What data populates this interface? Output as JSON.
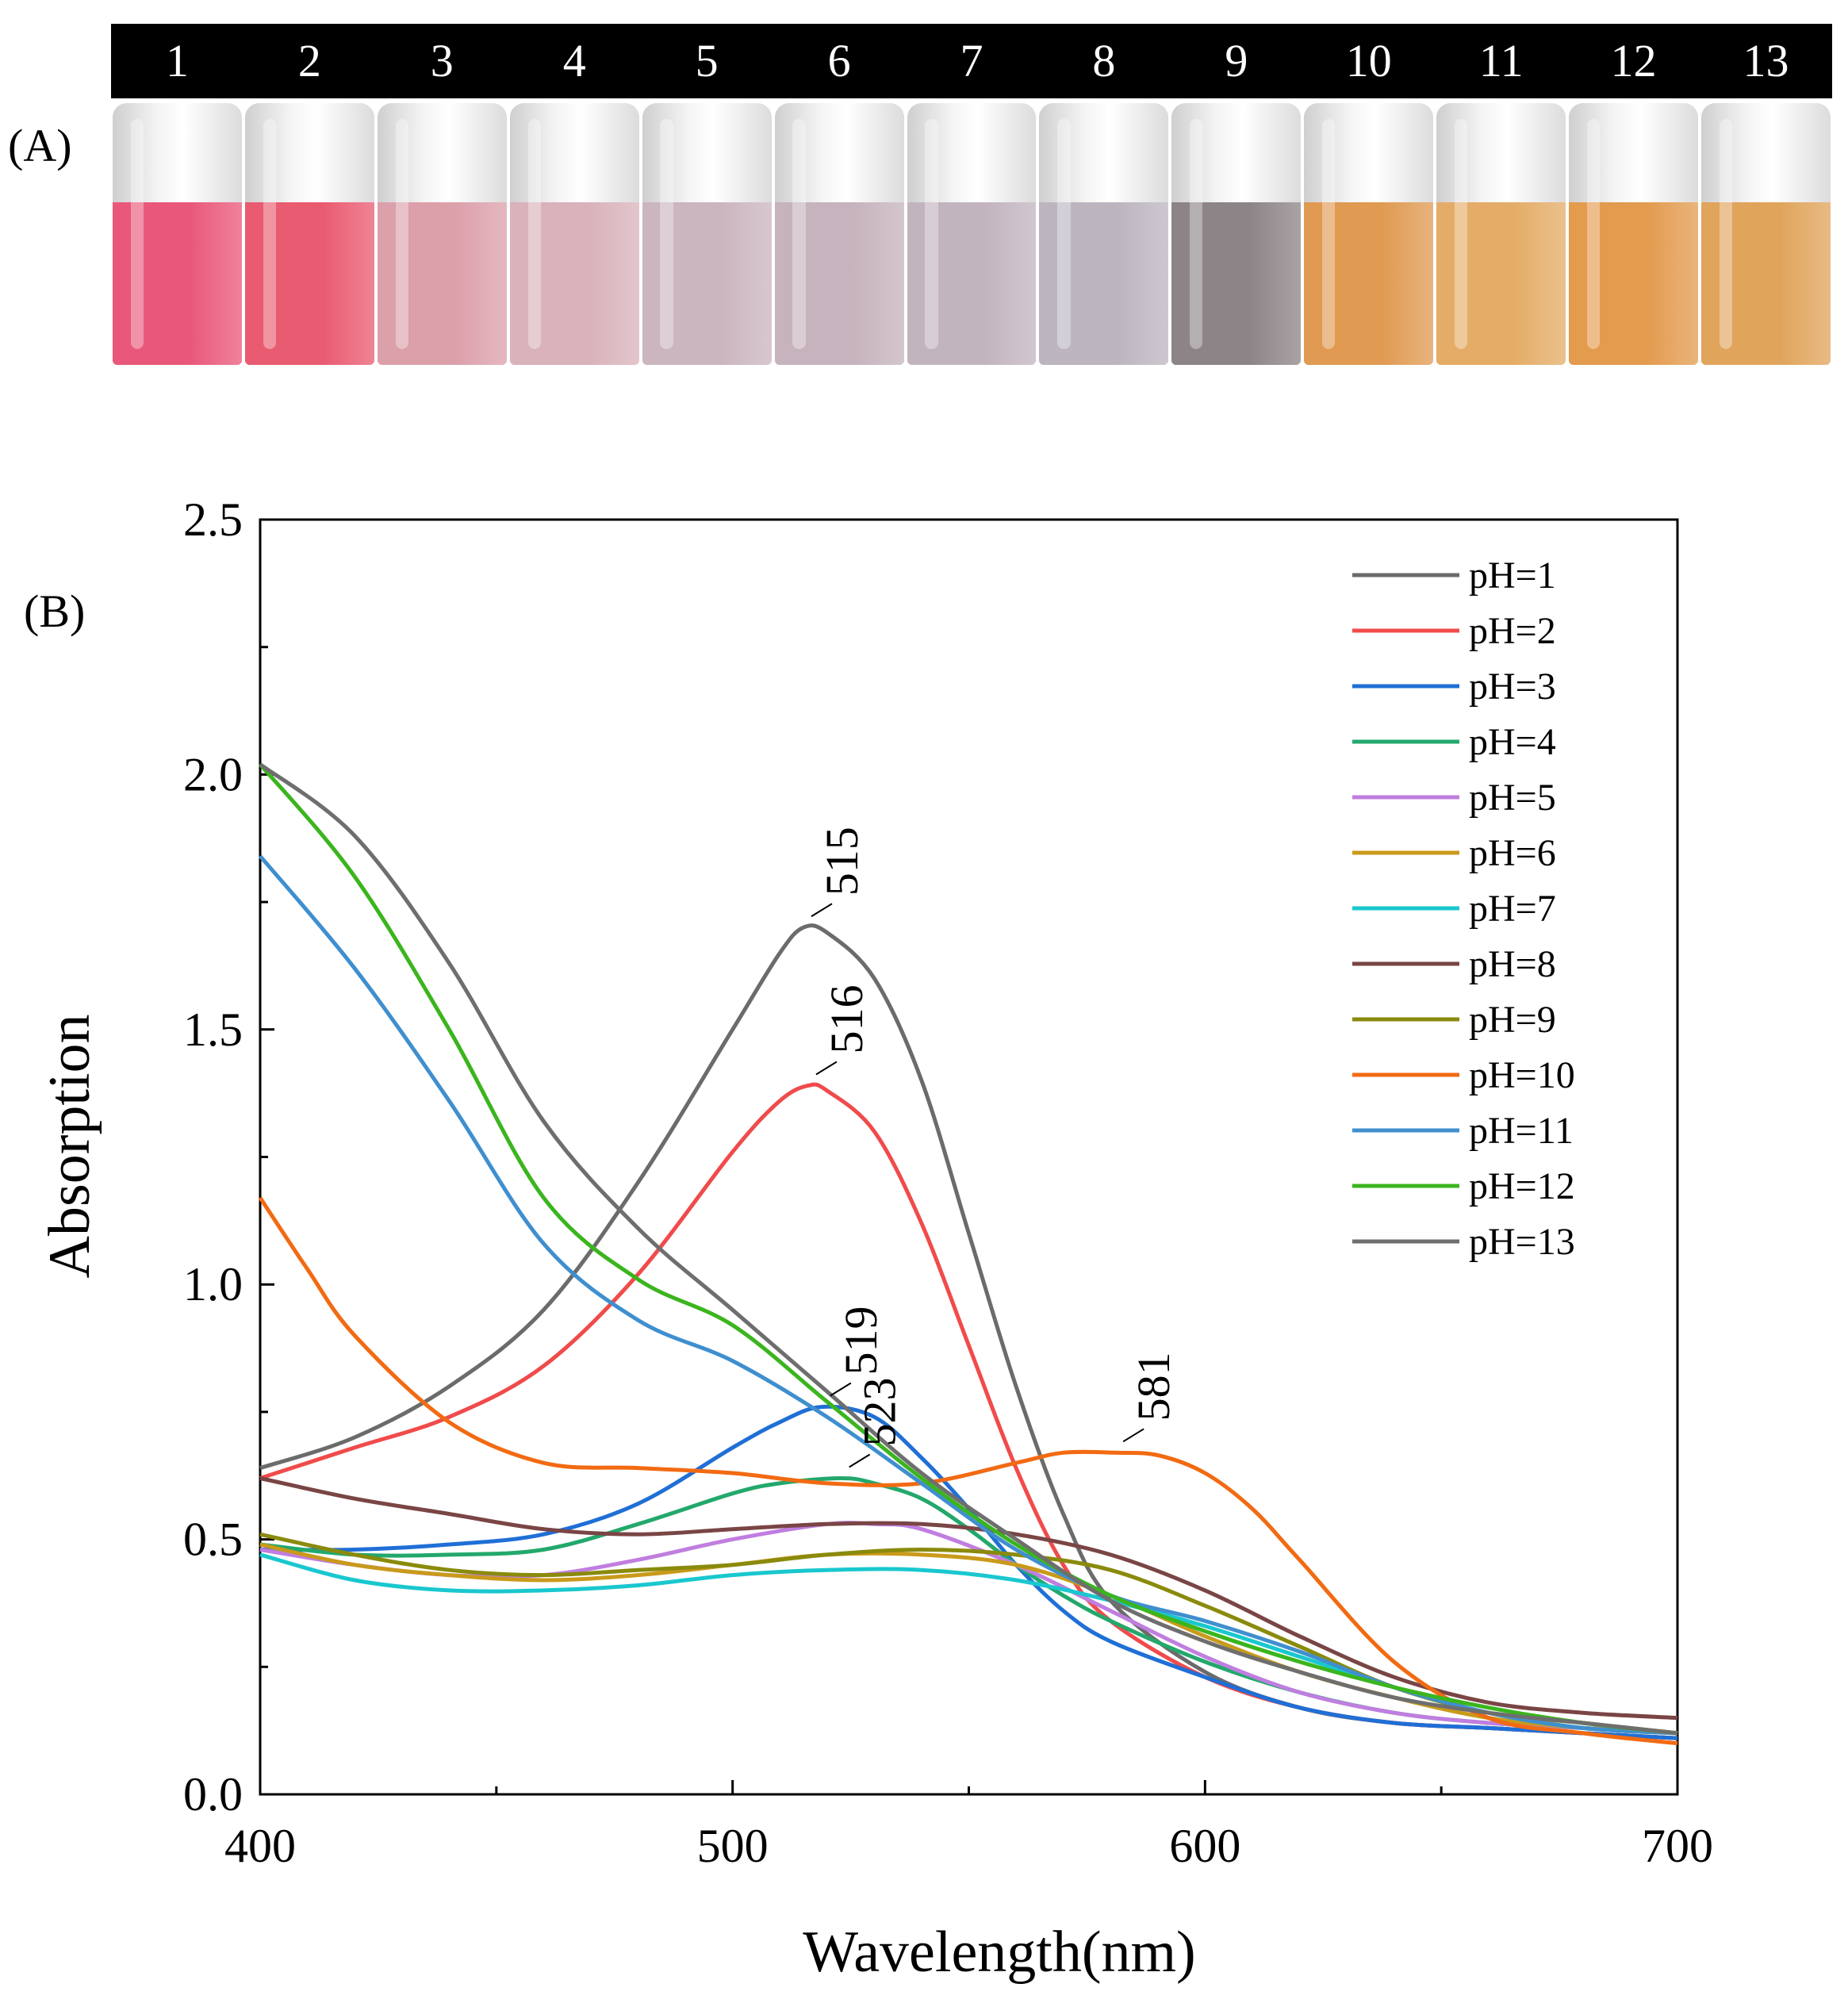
{
  "panel_a": {
    "label": "(A)",
    "vials": [
      {
        "number": "1",
        "color": "#e9587a"
      },
      {
        "number": "2",
        "color": "#e95b70"
      },
      {
        "number": "3",
        "color": "#dca0ab"
      },
      {
        "number": "4",
        "color": "#d9b2bb"
      },
      {
        "number": "5",
        "color": "#cbb5bf"
      },
      {
        "number": "6",
        "color": "#c6b3bd"
      },
      {
        "number": "7",
        "color": "#c2b4bf"
      },
      {
        "number": "8",
        "color": "#bcb5c0"
      },
      {
        "number": "9",
        "color": "#8d8487"
      },
      {
        "number": "10",
        "color": "#e09a52"
      },
      {
        "number": "11",
        "color": "#e4ac67"
      },
      {
        "number": "12",
        "color": "#e39b4e"
      },
      {
        "number": "13",
        "color": "#e0a45b"
      }
    ]
  },
  "panel_b": {
    "label": "(B)"
  },
  "chart_data": {
    "type": "line",
    "xlabel": "Wavelength(nm)",
    "ylabel": "Absorption",
    "xlim": [
      400,
      700
    ],
    "ylim": [
      0.0,
      2.5
    ],
    "xticks": [
      "400",
      "500",
      "600",
      "700"
    ],
    "yticks": [
      "0.0",
      "0.5",
      "1.0",
      "1.5",
      "2.0",
      "2.5"
    ],
    "legend_position": "top-right",
    "annotations": [
      {
        "text": "515",
        "x": 515,
        "y": 1.7
      },
      {
        "text": "516",
        "x": 516,
        "y": 1.39
      },
      {
        "text": "519",
        "x": 519,
        "y": 0.76
      },
      {
        "text": "523",
        "x": 523,
        "y": 0.62
      },
      {
        "text": "581",
        "x": 581,
        "y": 0.67
      }
    ],
    "series": [
      {
        "name": "pH=1",
        "color": "#6b6b6b",
        "x": [
          400,
          420,
          440,
          460,
          480,
          500,
          510,
          515,
          520,
          530,
          540,
          550,
          560,
          570,
          580,
          600,
          620,
          640,
          660,
          680,
          700
        ],
        "y": [
          0.64,
          0.7,
          0.8,
          0.95,
          1.2,
          1.5,
          1.65,
          1.7,
          1.69,
          1.6,
          1.4,
          1.1,
          0.8,
          0.55,
          0.38,
          0.24,
          0.17,
          0.14,
          0.13,
          0.12,
          0.11
        ]
      },
      {
        "name": "pH=2",
        "color": "#f04b4b",
        "x": [
          400,
          420,
          440,
          460,
          480,
          500,
          510,
          516,
          520,
          530,
          540,
          550,
          560,
          570,
          580,
          600,
          620,
          640,
          660,
          680,
          700
        ],
        "y": [
          0.62,
          0.68,
          0.74,
          0.84,
          1.02,
          1.26,
          1.36,
          1.39,
          1.38,
          1.3,
          1.12,
          0.88,
          0.64,
          0.45,
          0.34,
          0.23,
          0.17,
          0.14,
          0.13,
          0.12,
          0.11
        ]
      },
      {
        "name": "pH=3",
        "color": "#1f6fd6",
        "x": [
          400,
          420,
          440,
          460,
          480,
          500,
          510,
          519,
          530,
          540,
          550,
          560,
          570,
          580,
          600,
          620,
          640,
          660,
          680,
          700
        ],
        "y": [
          0.48,
          0.48,
          0.49,
          0.51,
          0.57,
          0.68,
          0.73,
          0.76,
          0.74,
          0.66,
          0.56,
          0.45,
          0.36,
          0.3,
          0.23,
          0.17,
          0.14,
          0.13,
          0.12,
          0.11
        ]
      },
      {
        "name": "pH=4",
        "color": "#23a86c",
        "x": [
          400,
          420,
          440,
          460,
          480,
          500,
          510,
          523,
          530,
          540,
          550,
          560,
          570,
          580,
          600,
          620,
          640,
          660,
          680,
          700
        ],
        "y": [
          0.49,
          0.47,
          0.47,
          0.48,
          0.53,
          0.59,
          0.61,
          0.62,
          0.61,
          0.58,
          0.52,
          0.45,
          0.39,
          0.34,
          0.26,
          0.2,
          0.16,
          0.14,
          0.13,
          0.12
        ]
      },
      {
        "name": "pH=5",
        "color": "#c07ee0",
        "x": [
          400,
          420,
          440,
          460,
          480,
          500,
          520,
          530,
          540,
          560,
          580,
          600,
          620,
          640,
          660,
          680,
          700
        ],
        "y": [
          0.48,
          0.45,
          0.43,
          0.43,
          0.46,
          0.5,
          0.53,
          0.53,
          0.52,
          0.45,
          0.36,
          0.27,
          0.2,
          0.16,
          0.14,
          0.13,
          0.12
        ]
      },
      {
        "name": "pH=6",
        "color": "#c99a1a",
        "x": [
          400,
          420,
          440,
          460,
          480,
          500,
          520,
          540,
          560,
          580,
          600,
          620,
          640,
          660,
          680,
          700
        ],
        "y": [
          0.49,
          0.45,
          0.43,
          0.42,
          0.43,
          0.45,
          0.47,
          0.47,
          0.45,
          0.39,
          0.31,
          0.24,
          0.19,
          0.15,
          0.13,
          0.12
        ]
      },
      {
        "name": "pH=7",
        "color": "#19c7cf",
        "x": [
          400,
          420,
          440,
          460,
          480,
          500,
          520,
          540,
          560,
          580,
          600,
          620,
          640,
          660,
          680,
          700
        ],
        "y": [
          0.47,
          0.42,
          0.4,
          0.4,
          0.41,
          0.43,
          0.44,
          0.44,
          0.42,
          0.38,
          0.33,
          0.27,
          0.21,
          0.16,
          0.13,
          0.12
        ]
      },
      {
        "name": "pH=8",
        "color": "#7a4545",
        "x": [
          400,
          420,
          440,
          460,
          480,
          500,
          520,
          540,
          560,
          580,
          600,
          620,
          640,
          660,
          680,
          700
        ],
        "y": [
          0.62,
          0.58,
          0.55,
          0.52,
          0.51,
          0.52,
          0.53,
          0.53,
          0.51,
          0.47,
          0.4,
          0.31,
          0.23,
          0.18,
          0.16,
          0.15
        ]
      },
      {
        "name": "pH=9",
        "color": "#8a8a0c",
        "x": [
          400,
          420,
          440,
          460,
          480,
          500,
          520,
          540,
          560,
          580,
          600,
          620,
          640,
          660,
          680,
          700
        ],
        "y": [
          0.51,
          0.47,
          0.44,
          0.43,
          0.44,
          0.45,
          0.47,
          0.48,
          0.47,
          0.44,
          0.37,
          0.29,
          0.21,
          0.16,
          0.14,
          0.12
        ]
      },
      {
        "name": "pH=10",
        "color": "#f26a12",
        "x": [
          400,
          410,
          420,
          440,
          460,
          480,
          500,
          520,
          540,
          560,
          570,
          581,
          590,
          600,
          610,
          620,
          640,
          660,
          680,
          700
        ],
        "y": [
          1.17,
          1.03,
          0.9,
          0.73,
          0.65,
          0.64,
          0.63,
          0.61,
          0.61,
          0.65,
          0.67,
          0.67,
          0.665,
          0.63,
          0.56,
          0.46,
          0.26,
          0.15,
          0.12,
          0.1
        ]
      },
      {
        "name": "pH=11",
        "color": "#3f8fcf",
        "x": [
          400,
          420,
          440,
          460,
          480,
          500,
          520,
          540,
          560,
          580,
          600,
          620,
          640,
          660,
          680,
          700
        ],
        "y": [
          1.84,
          1.62,
          1.36,
          1.08,
          0.93,
          0.85,
          0.74,
          0.61,
          0.48,
          0.39,
          0.34,
          0.28,
          0.21,
          0.16,
          0.13,
          0.12
        ]
      },
      {
        "name": "pH=12",
        "color": "#3bb51e",
        "x": [
          400,
          420,
          440,
          460,
          480,
          500,
          520,
          540,
          560,
          580,
          600,
          620,
          640,
          660,
          680,
          700
        ],
        "y": [
          2.02,
          1.8,
          1.5,
          1.17,
          1.01,
          0.92,
          0.77,
          0.62,
          0.49,
          0.39,
          0.32,
          0.26,
          0.21,
          0.17,
          0.14,
          0.12
        ]
      },
      {
        "name": "pH=13",
        "color": "#6e6e6e",
        "x": [
          400,
          420,
          440,
          460,
          480,
          500,
          520,
          540,
          560,
          580,
          600,
          620,
          640,
          660,
          680,
          700
        ],
        "y": [
          2.02,
          1.88,
          1.63,
          1.32,
          1.11,
          0.95,
          0.79,
          0.63,
          0.5,
          0.38,
          0.3,
          0.24,
          0.19,
          0.16,
          0.14,
          0.12
        ]
      }
    ]
  }
}
